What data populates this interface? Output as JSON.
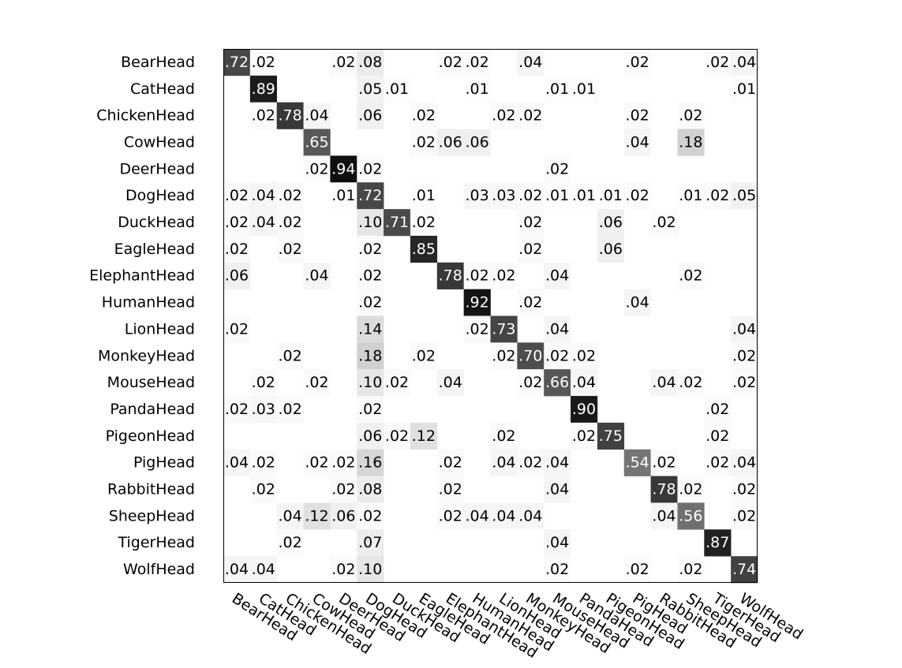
{
  "chart_data": {
    "type": "heatmap",
    "title": "",
    "xlabel": "",
    "ylabel": "",
    "colormap": "grayscale (white = 0, black = 1)",
    "value_format": "two decimals, leading zero dropped; empty cells = 0",
    "rows": [
      "BearHead",
      "CatHead",
      "ChickenHead",
      "CowHead",
      "DeerHead",
      "DogHead",
      "DuckHead",
      "EagleHead",
      "ElephantHead",
      "HumanHead",
      "LionHead",
      "MonkeyHead",
      "MouseHead",
      "PandaHead",
      "PigeonHead",
      "PigHead",
      "RabbitHead",
      "SheepHead",
      "TigerHead",
      "WolfHead"
    ],
    "columns": [
      "BearHead",
      "CatHead",
      "ChickenHead",
      "CowHead",
      "DeerHead",
      "DogHead",
      "DuckHead",
      "EagleHead",
      "ElephantHead",
      "HumanHead",
      "LionHead",
      "MonkeyHead",
      "MouseHead",
      "PandaHead",
      "PigeonHead",
      "PigHead",
      "RabbitHead",
      "SheepHead",
      "TigerHead",
      "WolfHead"
    ],
    "values": [
      [
        0.72,
        0.02,
        0,
        0,
        0.02,
        0.08,
        0,
        0,
        0.02,
        0.02,
        0,
        0.04,
        0,
        0,
        0,
        0.02,
        0,
        0,
        0.02,
        0.04
      ],
      [
        0,
        0.89,
        0,
        0,
        0,
        0.05,
        0.01,
        0,
        0,
        0.01,
        0,
        0,
        0.01,
        0.01,
        0,
        0,
        0,
        0,
        0,
        0.01
      ],
      [
        0,
        0.02,
        0.78,
        0.04,
        0,
        0.06,
        0,
        0.02,
        0,
        0,
        0.02,
        0.02,
        0,
        0,
        0,
        0.02,
        0,
        0.02,
        0,
        0
      ],
      [
        0,
        0,
        0,
        0.65,
        0,
        0,
        0,
        0.02,
        0.06,
        0.06,
        0,
        0,
        0,
        0,
        0,
        0.04,
        0,
        0.18,
        0,
        0
      ],
      [
        0,
        0,
        0,
        0.02,
        0.94,
        0.02,
        0,
        0,
        0,
        0,
        0,
        0,
        0.02,
        0,
        0,
        0,
        0,
        0,
        0,
        0
      ],
      [
        0.02,
        0.04,
        0.02,
        0,
        0.01,
        0.72,
        0,
        0.01,
        0,
        0.03,
        0.03,
        0.02,
        0.01,
        0.01,
        0.01,
        0.02,
        0,
        0.01,
        0.02,
        0.05
      ],
      [
        0.02,
        0.04,
        0.02,
        0,
        0,
        0.1,
        0.71,
        0.02,
        0,
        0,
        0,
        0.02,
        0,
        0,
        0.06,
        0,
        0.02,
        0,
        0,
        0
      ],
      [
        0.02,
        0,
        0.02,
        0,
        0,
        0.02,
        0,
        0.85,
        0,
        0,
        0,
        0.02,
        0,
        0,
        0.06,
        0,
        0,
        0,
        0,
        0
      ],
      [
        0.06,
        0,
        0,
        0.04,
        0,
        0.02,
        0,
        0,
        0.78,
        0.02,
        0.02,
        0,
        0.04,
        0,
        0,
        0,
        0,
        0.02,
        0,
        0
      ],
      [
        0,
        0,
        0,
        0,
        0,
        0.02,
        0,
        0,
        0,
        0.92,
        0,
        0.02,
        0,
        0,
        0,
        0.04,
        0,
        0,
        0,
        0
      ],
      [
        0.02,
        0,
        0,
        0,
        0,
        0.14,
        0,
        0,
        0,
        0.02,
        0.73,
        0,
        0.04,
        0,
        0,
        0,
        0,
        0,
        0,
        0.04
      ],
      [
        0,
        0,
        0.02,
        0,
        0,
        0.18,
        0,
        0.02,
        0,
        0,
        0.02,
        0.7,
        0.02,
        0.02,
        0,
        0,
        0,
        0,
        0,
        0.02
      ],
      [
        0,
        0.02,
        0,
        0.02,
        0,
        0.1,
        0.02,
        0,
        0.04,
        0,
        0,
        0.02,
        0.66,
        0.04,
        0,
        0,
        0.04,
        0.02,
        0,
        0.02
      ],
      [
        0.02,
        0.03,
        0.02,
        0,
        0,
        0.02,
        0,
        0,
        0,
        0,
        0,
        0,
        0,
        0.9,
        0,
        0,
        0,
        0,
        0.02,
        0
      ],
      [
        0,
        0,
        0,
        0,
        0,
        0.06,
        0.02,
        0.12,
        0,
        0,
        0.02,
        0,
        0,
        0.02,
        0.75,
        0,
        0,
        0,
        0.02,
        0
      ],
      [
        0.04,
        0.02,
        0,
        0.02,
        0.02,
        0.16,
        0,
        0,
        0.02,
        0,
        0.04,
        0.02,
        0.04,
        0,
        0,
        0.54,
        0.02,
        0,
        0.02,
        0.04
      ],
      [
        0,
        0.02,
        0,
        0,
        0.02,
        0.08,
        0,
        0,
        0.02,
        0,
        0,
        0,
        0.04,
        0,
        0,
        0,
        0.78,
        0.02,
        0,
        0.02
      ],
      [
        0,
        0,
        0.04,
        0.12,
        0.06,
        0.02,
        0,
        0,
        0.02,
        0.04,
        0.04,
        0.04,
        0,
        0,
        0,
        0,
        0.04,
        0.56,
        0,
        0.02
      ],
      [
        0,
        0,
        0.02,
        0,
        0,
        0.07,
        0,
        0,
        0,
        0,
        0,
        0,
        0.04,
        0,
        0,
        0,
        0,
        0,
        0.87,
        0
      ],
      [
        0.04,
        0.04,
        0,
        0,
        0.02,
        0.1,
        0,
        0,
        0,
        0,
        0,
        0,
        0.02,
        0,
        0,
        0.02,
        0,
        0.02,
        0,
        0.74
      ]
    ]
  }
}
